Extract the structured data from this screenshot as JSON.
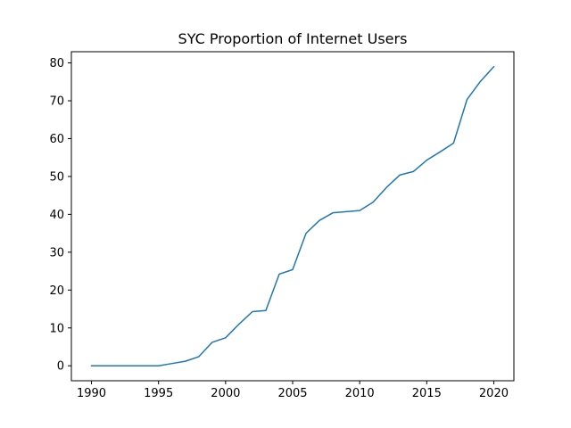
{
  "chart_data": {
    "type": "line",
    "title": "SYC Proportion of Internet Users",
    "xlabel": "",
    "ylabel": "",
    "xlim": [
      1988.5,
      2021.5
    ],
    "ylim": [
      -3.95,
      82.95
    ],
    "xticks": [
      1990,
      1995,
      2000,
      2005,
      2010,
      2015,
      2020
    ],
    "yticks": [
      0,
      10,
      20,
      30,
      40,
      50,
      60,
      70,
      80
    ],
    "grid": false,
    "legend": "none",
    "series": [
      {
        "color": "#1f77b4",
        "x": [
          1990,
          1991,
          1992,
          1993,
          1994,
          1995,
          1996,
          1997,
          1998,
          1999,
          2000,
          2001,
          2002,
          2003,
          2004,
          2005,
          2006,
          2007,
          2008,
          2009,
          2010,
          2011,
          2012,
          2013,
          2014,
          2015,
          2016,
          2017,
          2018,
          2019,
          2020
        ],
        "y": [
          0,
          0,
          0,
          0,
          0,
          0,
          0.6,
          1.2,
          2.4,
          6.2,
          7.4,
          11.0,
          14.3,
          14.6,
          24.2,
          25.4,
          35.0,
          38.4,
          40.4,
          40.7,
          41.0,
          43.2,
          47.1,
          50.4,
          51.3,
          54.3,
          56.5,
          58.8,
          70.3,
          75.1,
          79.0
        ]
      }
    ]
  }
}
